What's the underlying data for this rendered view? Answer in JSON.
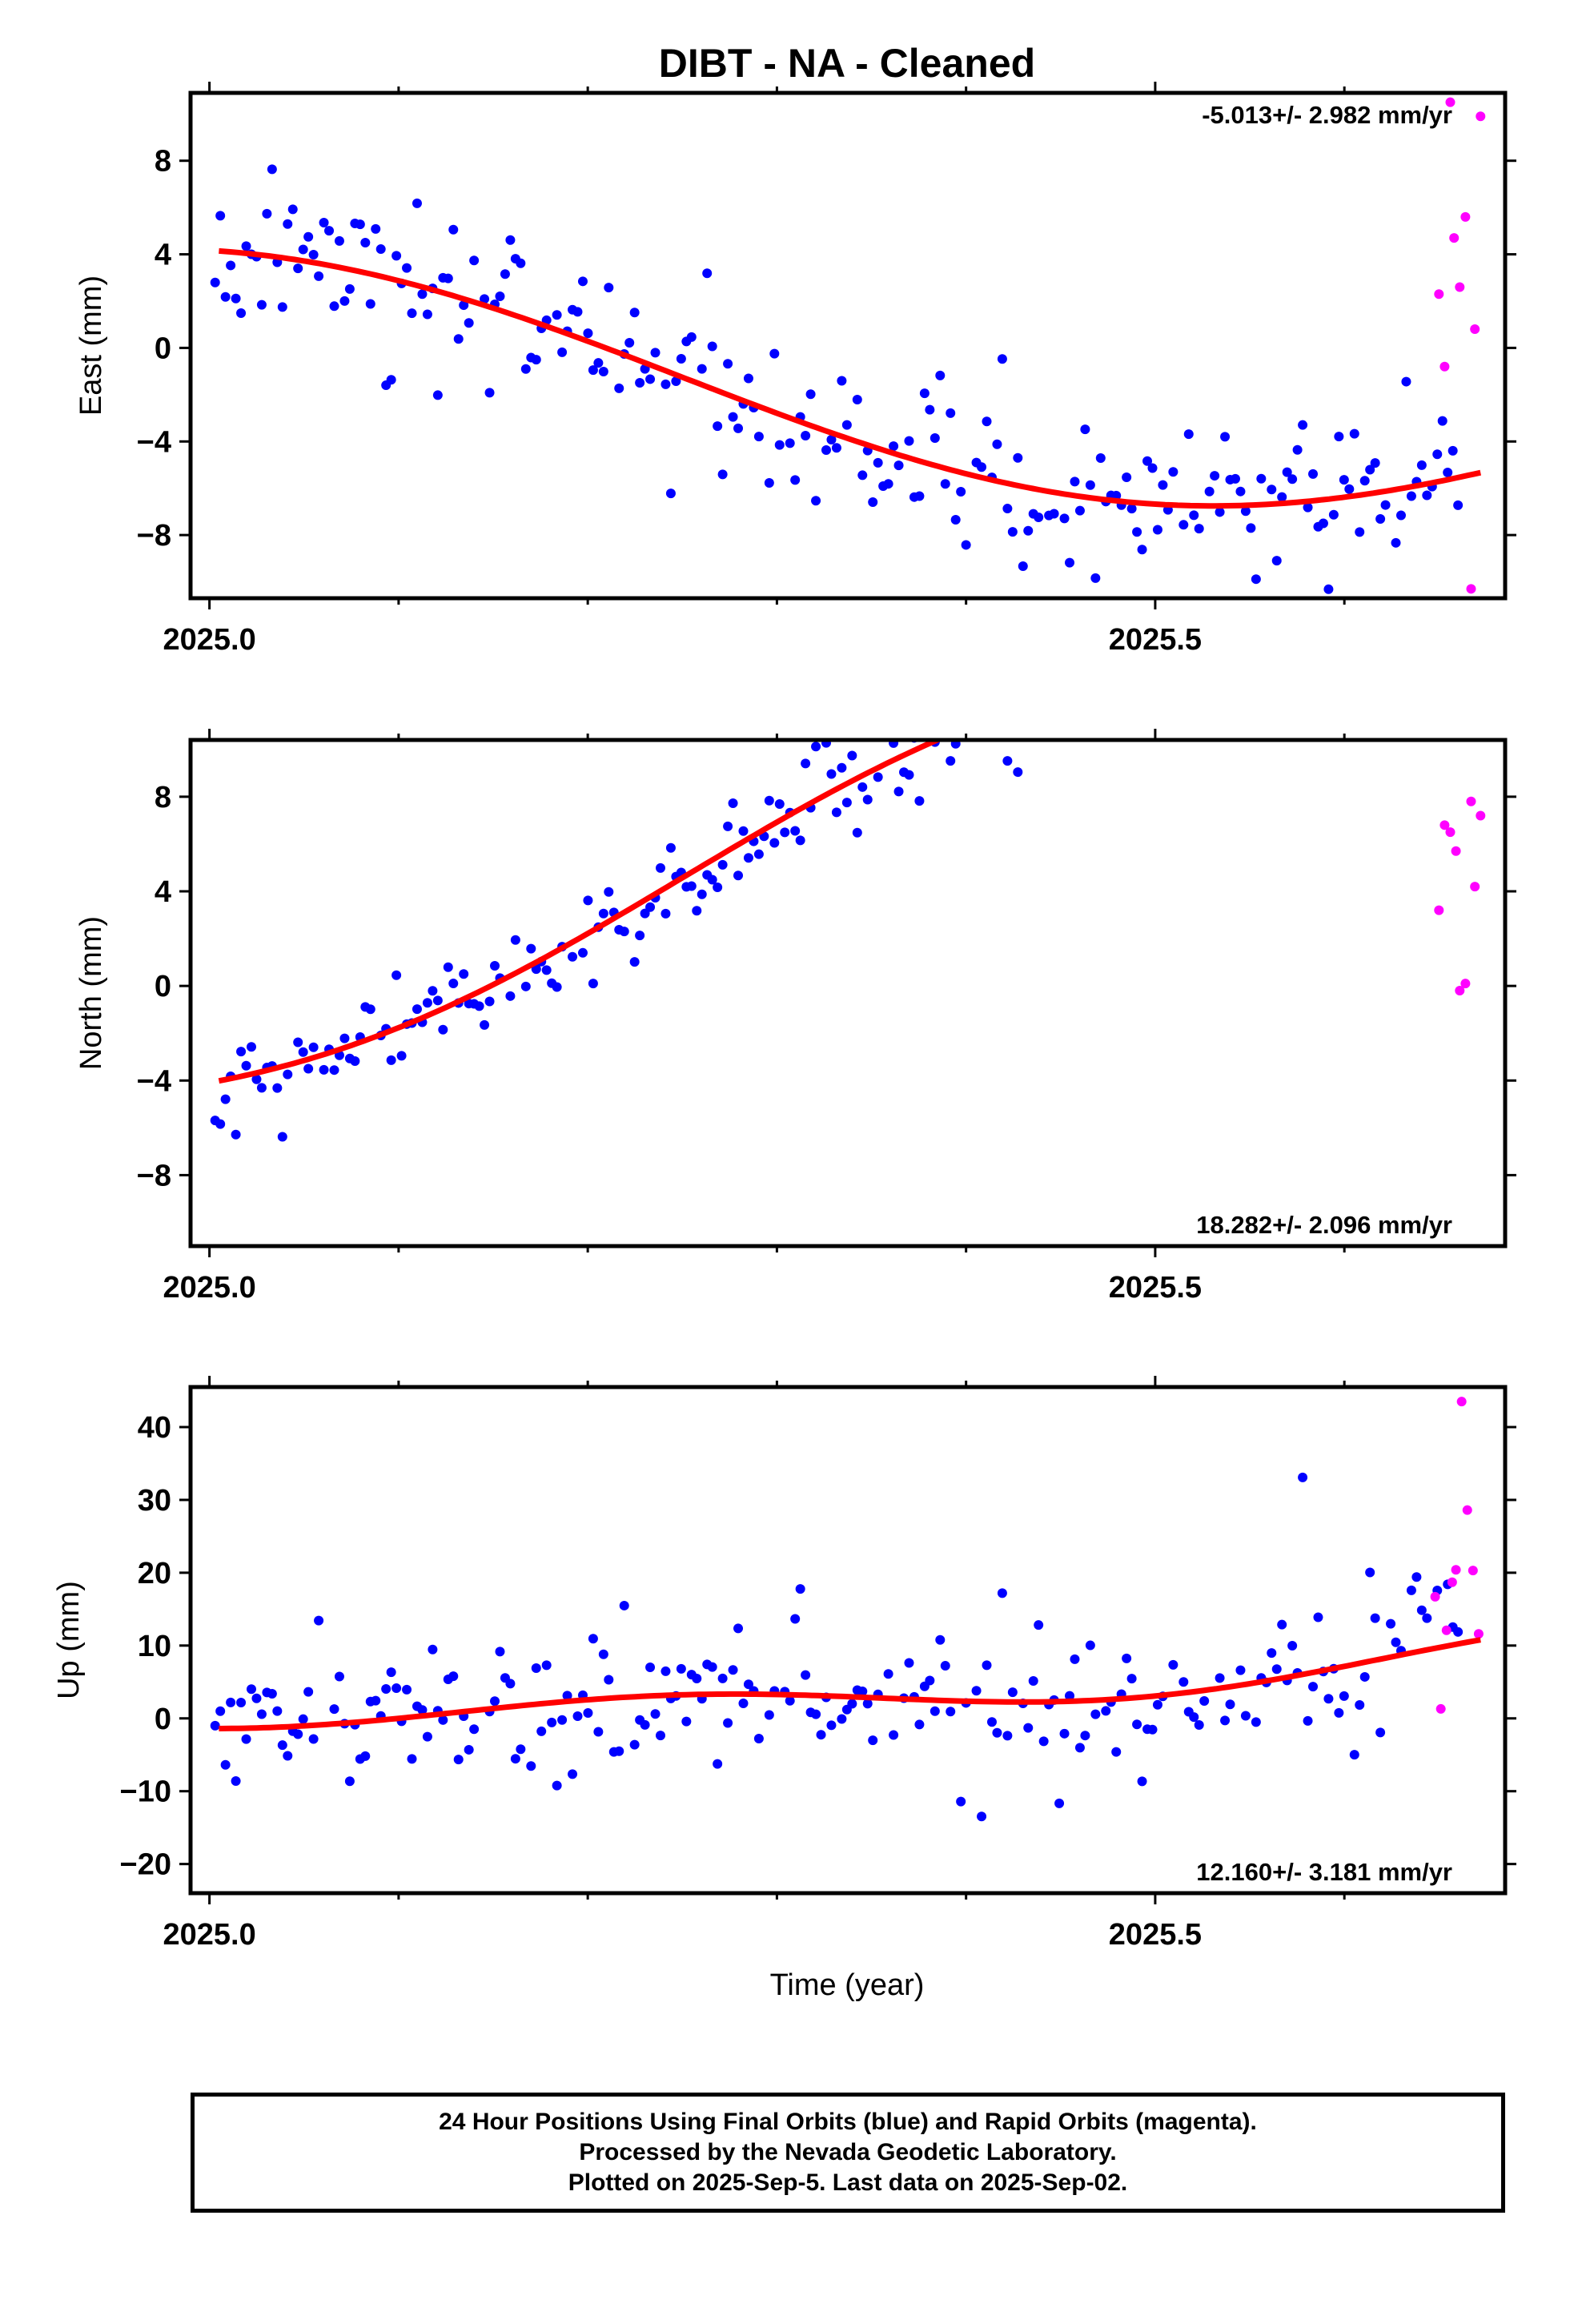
{
  "title": "DIBT  - NA - Cleaned",
  "xlabel": "Time (year)",
  "footer": {
    "line1": "24 Hour Positions Using Final Orbits (blue) and Rapid Orbits (magenta).",
    "line2": "Processed by the Nevada Geodetic Laboratory.",
    "line3": "Plotted on 2025-Sep-5. Last data on 2025-Sep-02."
  },
  "colors": {
    "final": "#0000ff",
    "rapid": "#ff00ff",
    "fit": "#ff0000"
  },
  "chart_data": [
    {
      "type": "scatter",
      "name": "east",
      "ylabel": "East (mm)",
      "rate_text": "-5.013+/- 2.982 mm/yr",
      "rate_position": "top-right",
      "xlim": [
        2024.99,
        2025.685
      ],
      "ylim": [
        -10.7,
        10.9
      ],
      "xticks": [
        2025.0,
        2025.5
      ],
      "xtick_labels": [
        "2025.0",
        "2025.5"
      ],
      "yticks": [
        -8,
        -4,
        0,
        4,
        8
      ],
      "ytick_labels": [
        "−8",
        "−4",
        "0",
        "4",
        "8"
      ],
      "trend": {
        "rate": -5.013,
        "intercept": 0.0,
        "annual_sin": 0.0,
        "annual_cos": 4.17,
        "semi_sin": 0.0,
        "semi_cos": 0.0
      },
      "series": [
        {
          "orbit": "final",
          "seed": 11,
          "noise": 1.55,
          "x_start": 2025.003,
          "x_end": 2025.66
        },
        {
          "orbit": "rapid",
          "x": [
            2025.65,
            2025.653,
            2025.656,
            2025.658,
            2025.661,
            2025.664,
            2025.667,
            2025.669,
            2025.672
          ],
          "y": [
            2.3,
            -0.8,
            10.5,
            4.7,
            2.6,
            5.6,
            -10.3,
            0.8,
            9.9
          ]
        }
      ]
    },
    {
      "type": "scatter",
      "name": "north",
      "ylabel": "North (mm)",
      "rate_text": "18.282+/- 2.096 mm/yr",
      "rate_position": "bottom-right",
      "xlim": [
        2024.99,
        2025.685
      ],
      "ylim": [
        -11.0,
        10.4
      ],
      "xticks": [
        2025.0,
        2025.5
      ],
      "xtick_labels": [
        "2025.0",
        "2025.5"
      ],
      "yticks": [
        -8,
        -4,
        0,
        4,
        8
      ],
      "ytick_labels": [
        "−8",
        "−4",
        "0",
        "4",
        "8"
      ],
      "trend": {
        "rate": 18.282,
        "intercept": 0.0,
        "annual_sin": 0.0,
        "annual_cos": -4.09,
        "semi_sin": -0.3,
        "semi_cos": 0.0
      },
      "series": [
        {
          "orbit": "final",
          "seed": 23,
          "noise": 1.05,
          "x_start": 2025.003,
          "x_end": 2025.66
        },
        {
          "orbit": "rapid",
          "x": [
            2025.65,
            2025.653,
            2025.656,
            2025.659,
            2025.661,
            2025.664,
            2025.667,
            2025.669,
            2025.672
          ],
          "y": [
            3.2,
            6.8,
            6.5,
            5.7,
            -0.2,
            0.1,
            7.8,
            4.2,
            7.2
          ]
        }
      ]
    },
    {
      "type": "scatter",
      "name": "up",
      "ylabel": "Up (mm)",
      "rate_text": "12.160+/- 3.181 mm/yr",
      "rate_position": "bottom-right",
      "xlim": [
        2024.99,
        2025.685
      ],
      "ylim": [
        -24,
        45.5
      ],
      "xticks": [
        2025.0,
        2025.5
      ],
      "xtick_labels": [
        "2025.0",
        "2025.5"
      ],
      "yticks": [
        -20,
        -10,
        0,
        10,
        20,
        30,
        40
      ],
      "ytick_labels": [
        "−20",
        "−10",
        "0",
        "10",
        "20",
        "30",
        "40"
      ],
      "trend": {
        "rate": 12.16,
        "intercept": 0.0,
        "annual_sin": -2.0,
        "annual_cos": 0.8,
        "semi_sin": 0.0,
        "semi_cos": -2.2
      },
      "series": [
        {
          "orbit": "final",
          "seed": 37,
          "noise": 5.2,
          "x_start": 2025.003,
          "x_end": 2025.66
        },
        {
          "orbit": "rapid",
          "x": [
            2025.648,
            2025.651,
            2025.654,
            2025.657,
            2025.659,
            2025.662,
            2025.665,
            2025.668,
            2025.671
          ],
          "y": [
            16.7,
            1.3,
            12.1,
            18.7,
            20.4,
            43.5,
            28.6,
            20.3,
            11.6
          ]
        }
      ]
    }
  ]
}
